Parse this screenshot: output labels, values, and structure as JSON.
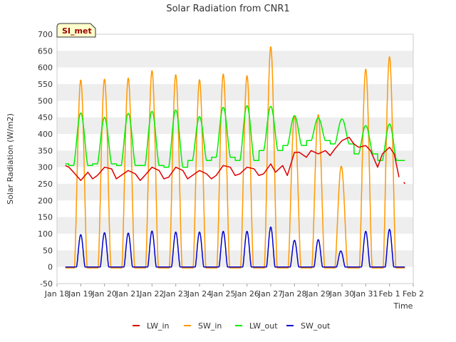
{
  "chart_data": {
    "type": "line",
    "title": "Solar Radiation from CNR1",
    "xlabel": "Time",
    "ylabel": "Solar Radiation (W/m2)",
    "badge": "SI_met",
    "ylim": [
      -50,
      700
    ],
    "yticks": [
      -50,
      0,
      50,
      100,
      150,
      200,
      250,
      300,
      350,
      400,
      450,
      500,
      550,
      600,
      650,
      700
    ],
    "xlim": [
      0,
      15
    ],
    "xticks": [
      {
        "x": 0,
        "label": "Jan 18"
      },
      {
        "x": 1,
        "label": "Jan 19"
      },
      {
        "x": 2,
        "label": "Jan 20"
      },
      {
        "x": 3,
        "label": "Jan 21"
      },
      {
        "x": 4,
        "label": "Jan 22"
      },
      {
        "x": 5,
        "label": "Jan 23"
      },
      {
        "x": 6,
        "label": "Jan 24"
      },
      {
        "x": 7,
        "label": "Jan 25"
      },
      {
        "x": 8,
        "label": "Jan 26"
      },
      {
        "x": 9,
        "label": "Jan 27"
      },
      {
        "x": 10,
        "label": "Jan 28"
      },
      {
        "x": 11,
        "label": "Jan 29"
      },
      {
        "x": 12,
        "label": "Jan 30"
      },
      {
        "x": 13,
        "label": "Jan 31"
      },
      {
        "x": 14,
        "label": "Feb 1"
      },
      {
        "x": 15,
        "label": "Feb 2"
      }
    ],
    "grid": "horizontal bands",
    "legend_position": "bottom",
    "series": [
      {
        "name": "LW_in",
        "color": "#dd0000",
        "x": [
          0.35,
          0.5,
          0.7,
          1.0,
          1.3,
          1.5,
          1.7,
          2.0,
          2.3,
          2.5,
          2.7,
          3.0,
          3.3,
          3.5,
          3.7,
          4.0,
          4.3,
          4.5,
          4.7,
          5.0,
          5.3,
          5.5,
          5.7,
          6.0,
          6.3,
          6.5,
          6.7,
          7.0,
          7.3,
          7.5,
          7.7,
          8.0,
          8.3,
          8.5,
          8.7,
          9.0,
          9.2,
          9.5,
          9.7,
          10.0,
          10.2,
          10.5,
          10.7,
          11.0,
          11.3,
          11.5,
          11.7,
          12.0,
          12.3,
          12.5,
          12.7,
          13.0,
          13.2,
          13.5,
          13.7,
          14.0,
          14.2,
          14.4
        ],
        "y": [
          305,
          300,
          285,
          260,
          285,
          265,
          275,
          300,
          295,
          265,
          275,
          290,
          280,
          260,
          275,
          300,
          290,
          265,
          270,
          300,
          290,
          265,
          275,
          290,
          280,
          265,
          275,
          305,
          300,
          275,
          280,
          300,
          295,
          275,
          280,
          310,
          285,
          305,
          275,
          345,
          345,
          330,
          350,
          340,
          350,
          335,
          355,
          380,
          390,
          370,
          360,
          365,
          350,
          300,
          340,
          360,
          340,
          270
        ],
        "end_x": [
          14.6,
          14.65
        ],
        "end_y": [
          255,
          250
        ]
      },
      {
        "name": "SW_in",
        "color": "#ff9900",
        "peaks": [
          {
            "x": 1.0,
            "y": 562
          },
          {
            "x": 2.0,
            "y": 565
          },
          {
            "x": 3.0,
            "y": 568
          },
          {
            "x": 4.0,
            "y": 590
          },
          {
            "x": 5.0,
            "y": 578
          },
          {
            "x": 6.0,
            "y": 563
          },
          {
            "x": 7.0,
            "y": 580
          },
          {
            "x": 8.0,
            "y": 575
          },
          {
            "x": 9.0,
            "y": 662
          },
          {
            "x": 10.0,
            "y": 455
          },
          {
            "x": 11.0,
            "y": 458
          },
          {
            "x": 11.97,
            "y": 303
          },
          {
            "x": 13.0,
            "y": 595
          },
          {
            "x": 14.0,
            "y": 632
          }
        ],
        "night_value": -3
      },
      {
        "name": "LW_out",
        "color": "#00ee00",
        "peaks": [
          {
            "x": 1.0,
            "y": 463
          },
          {
            "x": 2.0,
            "y": 450
          },
          {
            "x": 3.0,
            "y": 462
          },
          {
            "x": 4.0,
            "y": 468
          },
          {
            "x": 5.0,
            "y": 472
          },
          {
            "x": 6.0,
            "y": 452
          },
          {
            "x": 7.0,
            "y": 480
          },
          {
            "x": 8.0,
            "y": 485
          },
          {
            "x": 9.0,
            "y": 483
          },
          {
            "x": 10.0,
            "y": 455
          },
          {
            "x": 11.0,
            "y": 448
          },
          {
            "x": 12.0,
            "y": 445
          },
          {
            "x": 13.0,
            "y": 425
          },
          {
            "x": 14.0,
            "y": 430
          }
        ],
        "night_values": [
          310,
          305,
          310,
          305,
          305,
          300,
          320,
          330,
          320,
          350,
          365,
          380,
          370,
          340,
          320
        ]
      },
      {
        "name": "SW_out",
        "color": "#0000cc",
        "peaks": [
          {
            "x": 1.0,
            "y": 97
          },
          {
            "x": 2.0,
            "y": 103
          },
          {
            "x": 3.0,
            "y": 102
          },
          {
            "x": 4.0,
            "y": 108
          },
          {
            "x": 5.0,
            "y": 105
          },
          {
            "x": 6.0,
            "y": 105
          },
          {
            "x": 7.0,
            "y": 107
          },
          {
            "x": 8.0,
            "y": 107
          },
          {
            "x": 9.0,
            "y": 120
          },
          {
            "x": 10.0,
            "y": 80
          },
          {
            "x": 11.0,
            "y": 82
          },
          {
            "x": 11.95,
            "y": 48
          },
          {
            "x": 13.0,
            "y": 107
          },
          {
            "x": 14.0,
            "y": 113
          }
        ],
        "night_value": 0
      }
    ]
  }
}
